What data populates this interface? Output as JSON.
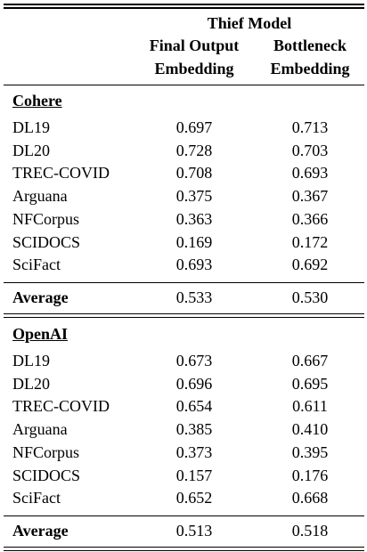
{
  "table": {
    "group_header": "Thief Model",
    "columns": [
      [
        "Final Output",
        "Embedding"
      ],
      [
        "Bottleneck",
        "Embedding"
      ]
    ],
    "sections": [
      {
        "name": "Cohere",
        "rows": [
          [
            "DL19",
            "0.697",
            "0.713"
          ],
          [
            "DL20",
            "0.728",
            "0.703"
          ],
          [
            "TREC-COVID",
            "0.708",
            "0.693"
          ],
          [
            "Arguana",
            "0.375",
            "0.367"
          ],
          [
            "NFCorpus",
            "0.363",
            "0.366"
          ],
          [
            "SCIDOCS",
            "0.169",
            "0.172"
          ],
          [
            "SciFact",
            "0.693",
            "0.692"
          ]
        ],
        "average": [
          "Average",
          "0.533",
          "0.530"
        ]
      },
      {
        "name": "OpenAI",
        "rows": [
          [
            "DL19",
            "0.673",
            "0.667"
          ],
          [
            "DL20",
            "0.696",
            "0.695"
          ],
          [
            "TREC-COVID",
            "0.654",
            "0.611"
          ],
          [
            "Arguana",
            "0.385",
            "0.410"
          ],
          [
            "NFCorpus",
            "0.373",
            "0.395"
          ],
          [
            "SCIDOCS",
            "0.157",
            "0.176"
          ],
          [
            "SciFact",
            "0.652",
            "0.668"
          ]
        ],
        "average": [
          "Average",
          "0.513",
          "0.518"
        ]
      }
    ]
  }
}
